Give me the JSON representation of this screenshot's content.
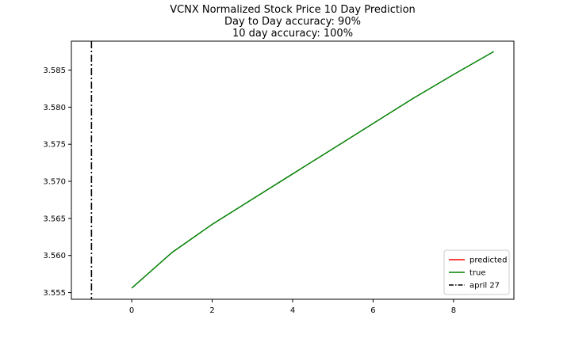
{
  "chart_data": {
    "type": "line",
    "title_lines": [
      "VCNX Normalized Stock Price 10 Day Prediction",
      "Day to Day accuracy: 90%",
      "10 day accuracy: 100%"
    ],
    "xlabel": "",
    "ylabel": "",
    "xlim": [
      -1.5,
      9.5
    ],
    "ylim": [
      3.5541,
      3.5889
    ],
    "xticks": [
      0,
      2,
      4,
      6,
      8
    ],
    "yticks": [
      3.555,
      3.56,
      3.565,
      3.57,
      3.575,
      3.58,
      3.585
    ],
    "ytick_labels": [
      "3.555",
      "3.560",
      "3.565",
      "3.570",
      "3.575",
      "3.580",
      "3.585"
    ],
    "grid": false,
    "legend_placement": "lower-right",
    "series": [
      {
        "name": "predicted",
        "color": "#ff0000",
        "style": "solid",
        "x": [],
        "y": []
      },
      {
        "name": "true",
        "color": "#008000",
        "style": "solid",
        "x": [
          0,
          1,
          2,
          3,
          4,
          5,
          6,
          7,
          8,
          9
        ],
        "y": [
          3.5556,
          3.5604,
          3.5642,
          3.5676,
          3.571,
          3.5744,
          3.5778,
          3.5812,
          3.5844,
          3.5875
        ]
      }
    ],
    "vline": {
      "name": "april 27",
      "x": -1,
      "color": "#000000",
      "style": "dashdot"
    }
  }
}
